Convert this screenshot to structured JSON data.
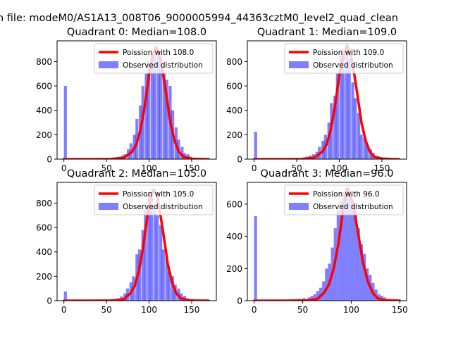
{
  "figure": {
    "suptitle": "n file: modeM0/AS1A13_008T06_9000005994_44363cztM0_level2_quad_clean"
  },
  "legend": {
    "observed_label": "Observed distribution"
  },
  "colors": {
    "poisson": "#ff0000",
    "observed": "#0000ff",
    "observed_opacity": 0.5
  },
  "chart_data": [
    {
      "type": "bar",
      "title": "Quadrant 0: Median=108.0",
      "xlim": [
        -8,
        179
      ],
      "ylim": [
        0,
        970
      ],
      "xticks": [
        0,
        50,
        100,
        150
      ],
      "yticks": [
        0,
        200,
        400,
        600,
        800
      ],
      "legend_position": "upper-right",
      "series": [
        {
          "name": "Poission with 108.0",
          "kind": "line",
          "x": [
            0,
            30,
            55,
            70,
            80,
            85,
            90,
            95,
            100,
            104,
            108,
            112,
            116,
            120,
            125,
            130,
            135,
            140,
            150,
            160,
            170
          ],
          "y": [
            0,
            0,
            2,
            10,
            60,
            120,
            240,
            440,
            690,
            850,
            920,
            870,
            720,
            540,
            300,
            150,
            60,
            20,
            3,
            1,
            0
          ]
        },
        {
          "name": "Observed distribution",
          "kind": "histogram",
          "bin_width": 3.5,
          "x": [
            0,
            56,
            60,
            63,
            67,
            70,
            74,
            77,
            81,
            84,
            88,
            91,
            95,
            98,
            102,
            105,
            109,
            112,
            116,
            119,
            123,
            126,
            130,
            133,
            137,
            140,
            144,
            147,
            151
          ],
          "y": [
            600,
            10,
            15,
            20,
            30,
            40,
            80,
            130,
            200,
            330,
            440,
            600,
            700,
            780,
            840,
            900,
            880,
            820,
            700,
            650,
            600,
            400,
            260,
            160,
            100,
            50,
            40,
            20,
            10
          ]
        }
      ]
    },
    {
      "type": "bar",
      "title": "Quadrant 1: Median=109.0",
      "xlim": [
        -8,
        179
      ],
      "ylim": [
        0,
        970
      ],
      "xticks": [
        0,
        50,
        100,
        150
      ],
      "yticks": [
        0,
        200,
        400,
        600,
        800
      ],
      "legend_position": "upper-right",
      "series": [
        {
          "name": "Poission with 109.0",
          "kind": "line",
          "x": [
            0,
            30,
            55,
            70,
            80,
            85,
            90,
            95,
            100,
            105,
            109,
            113,
            117,
            121,
            126,
            131,
            136,
            141,
            150,
            160,
            170
          ],
          "y": [
            0,
            0,
            2,
            10,
            60,
            120,
            240,
            440,
            690,
            850,
            930,
            870,
            720,
            540,
            300,
            150,
            60,
            20,
            4,
            1,
            0
          ]
        },
        {
          "name": "Observed distribution",
          "kind": "histogram",
          "bin_width": 3.5,
          "x": [
            0,
            60,
            64,
            68,
            72,
            75,
            79,
            82,
            86,
            89,
            93,
            96,
            100,
            103,
            107,
            110,
            114,
            117,
            121,
            124,
            128,
            131,
            135,
            138,
            142,
            145
          ],
          "y": [
            225,
            20,
            30,
            40,
            60,
            100,
            150,
            200,
            300,
            460,
            520,
            700,
            850,
            900,
            950,
            820,
            630,
            500,
            380,
            200,
            180,
            120,
            80,
            50,
            20,
            15
          ]
        }
      ]
    },
    {
      "type": "bar",
      "title": "Quadrant 2: Median=105.0",
      "xlim": [
        -8,
        179
      ],
      "ylim": [
        0,
        970
      ],
      "xticks": [
        0,
        50,
        100,
        150
      ],
      "yticks": [
        0,
        200,
        400,
        600,
        800
      ],
      "legend_position": "upper-right",
      "series": [
        {
          "name": "Poission with 105.0",
          "kind": "line",
          "x": [
            0,
            30,
            55,
            70,
            78,
            83,
            88,
            93,
            98,
            102,
            105,
            109,
            113,
            117,
            122,
            127,
            132,
            137,
            145,
            155,
            170
          ],
          "y": [
            0,
            0,
            2,
            10,
            60,
            120,
            240,
            440,
            690,
            850,
            910,
            870,
            720,
            540,
            300,
            150,
            60,
            20,
            4,
            1,
            0
          ]
        },
        {
          "name": "Observed distribution",
          "kind": "histogram",
          "bin_width": 3.5,
          "x": [
            0,
            63,
            66,
            70,
            73,
            77,
            80,
            84,
            87,
            91,
            94,
            98,
            101,
            105,
            108,
            112,
            115,
            119,
            122,
            126,
            129,
            133,
            136,
            140,
            143,
            147
          ],
          "y": [
            75,
            20,
            35,
            60,
            100,
            150,
            200,
            380,
            420,
            580,
            760,
            870,
            850,
            780,
            700,
            620,
            420,
            360,
            240,
            200,
            130,
            100,
            60,
            40,
            20,
            10
          ]
        }
      ]
    },
    {
      "type": "bar",
      "title": "Quadrant 3: Median=96.0",
      "xlim": [
        -7,
        157
      ],
      "ylim": [
        0,
        735
      ],
      "xticks": [
        0,
        50,
        100,
        150
      ],
      "yticks": [
        0,
        200,
        400,
        600
      ],
      "legend_position": "upper-right",
      "series": [
        {
          "name": "Poission with 96.0",
          "kind": "line",
          "x": [
            0,
            30,
            55,
            65,
            72,
            77,
            82,
            87,
            91,
            94,
            96,
            99,
            103,
            107,
            112,
            117,
            122,
            127,
            135,
            145,
            150
          ],
          "y": [
            0,
            0,
            2,
            10,
            50,
            100,
            200,
            360,
            540,
            650,
            700,
            660,
            560,
            420,
            240,
            120,
            50,
            15,
            3,
            1,
            0
          ]
        },
        {
          "name": "Observed distribution",
          "kind": "histogram",
          "bin_width": 3.0,
          "x": [
            0,
            45,
            50,
            55,
            58,
            61,
            64,
            67,
            70,
            73,
            76,
            79,
            82,
            85,
            88,
            91,
            94,
            97,
            100,
            103,
            106,
            109,
            112,
            115,
            118,
            121,
            124,
            127,
            130,
            133,
            136,
            139
          ],
          "y": [
            525,
            10,
            15,
            20,
            30,
            40,
            60,
            80,
            120,
            200,
            230,
            330,
            450,
            560,
            620,
            680,
            700,
            660,
            620,
            600,
            450,
            350,
            290,
            200,
            160,
            110,
            70,
            40,
            30,
            20,
            10,
            5
          ]
        }
      ]
    }
  ]
}
